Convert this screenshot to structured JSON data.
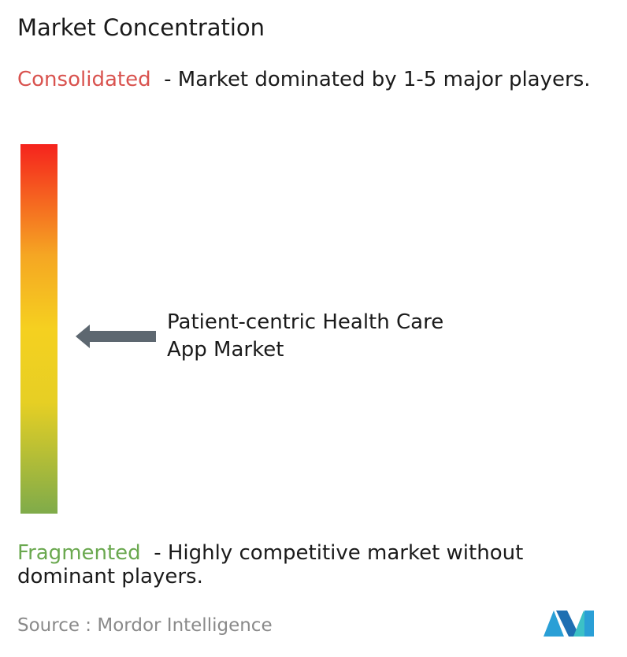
{
  "title": "Market Concentration",
  "consolidated": {
    "label": "Consolidated",
    "description": "- Market dominated by 1-5 major players."
  },
  "market": {
    "name": "Patient-centric Health Care App Market"
  },
  "fragmented": {
    "label": "Fragmented",
    "description": "- Highly competitive market without dominant players."
  },
  "source": {
    "label": "Source :",
    "name": "Mordor Intelligence"
  }
}
